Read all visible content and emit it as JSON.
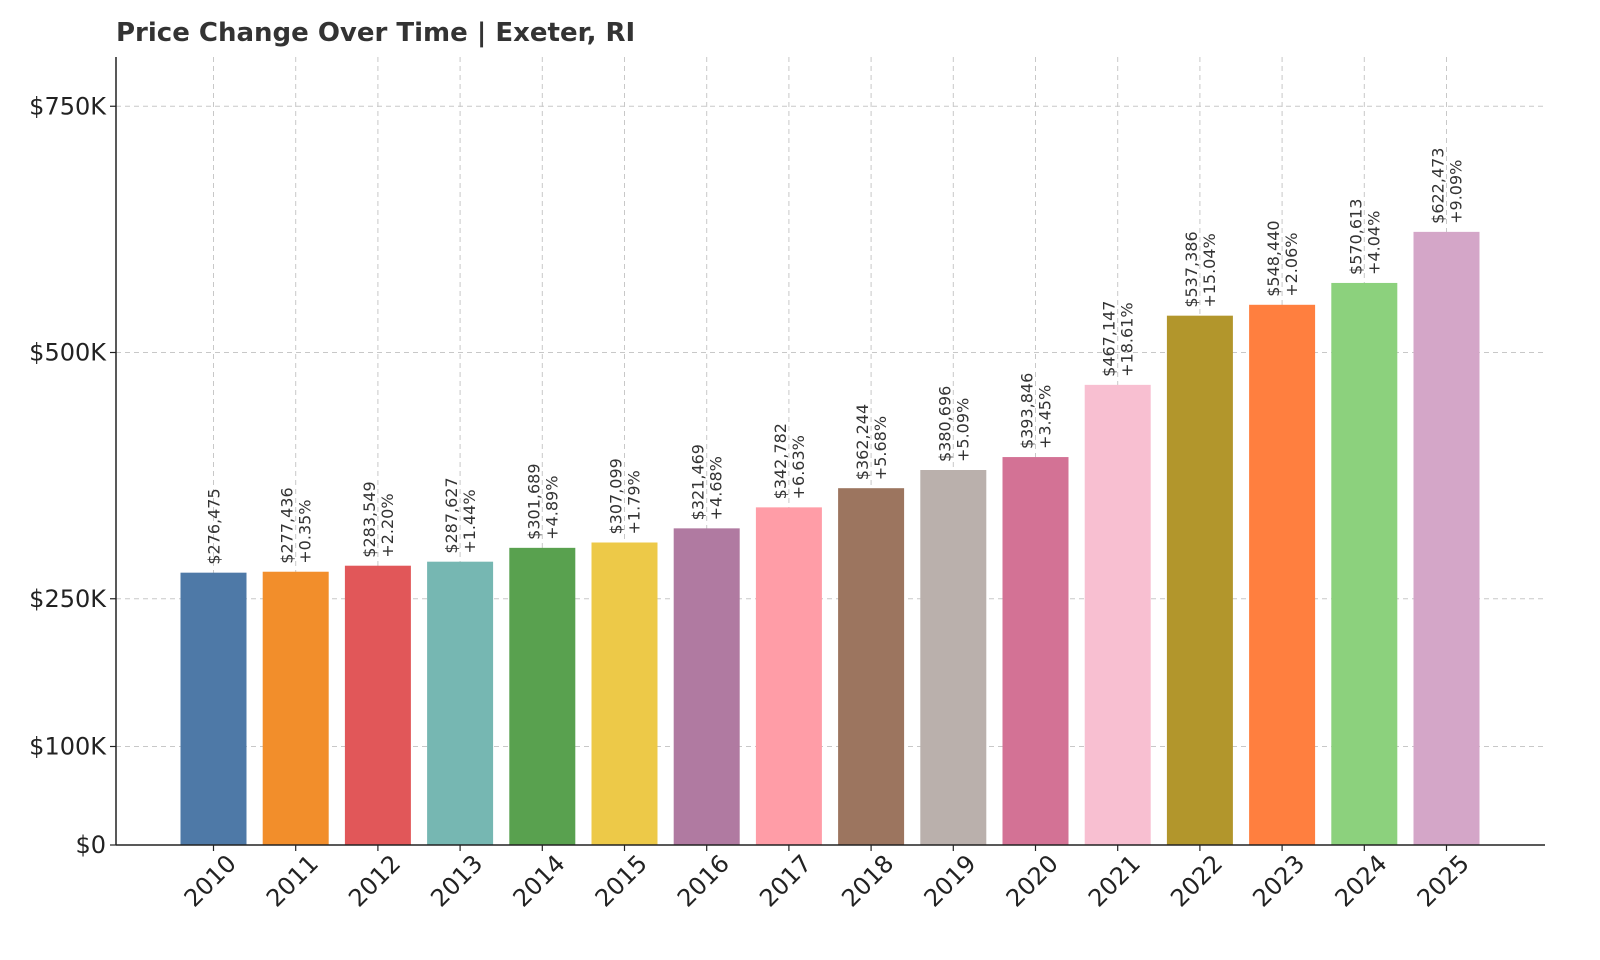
{
  "chart_data": {
    "type": "bar",
    "title": "Price Change Over Time | Exeter, RI",
    "xlabel": "",
    "ylabel": "",
    "categories": [
      "2010",
      "2011",
      "2012",
      "2013",
      "2014",
      "2015",
      "2016",
      "2017",
      "2018",
      "2019",
      "2020",
      "2021",
      "2022",
      "2023",
      "2024",
      "2025"
    ],
    "values": [
      276475,
      277436,
      283549,
      287627,
      301689,
      307099,
      321469,
      342782,
      362244,
      380696,
      393846,
      467147,
      537386,
      548440,
      570613,
      622473
    ],
    "value_labels": [
      "$276,475",
      "$277,436",
      "$283,549",
      "$287,627",
      "$301,689",
      "$307,099",
      "$321,469",
      "$342,782",
      "$362,244",
      "$380,696",
      "$393,846",
      "$467,147",
      "$537,386",
      "$548,440",
      "$570,613",
      "$622,473"
    ],
    "change_labels": [
      "",
      "+0.35%",
      "+2.20%",
      "+1.44%",
      "+4.89%",
      "+1.79%",
      "+4.68%",
      "+6.63%",
      "+5.68%",
      "+5.09%",
      "+3.45%",
      "+18.61%",
      "+15.04%",
      "+2.06%",
      "+4.04%",
      "+9.09%"
    ],
    "colors": [
      "#4e79a7",
      "#f28e2b",
      "#e15759",
      "#76b7b2",
      "#59a14f",
      "#edc948",
      "#b07aa1",
      "#ff9da7",
      "#9c755f",
      "#bab0ac",
      "#d37295",
      "#f8bfd1",
      "#b2962c",
      "#ff7f3f",
      "#8cd17d",
      "#d4a6c8"
    ],
    "ylim": [
      0,
      800000
    ],
    "yticks": [
      0,
      100000,
      250000,
      500000,
      750000
    ],
    "ytick_labels": [
      "$0",
      "$100K",
      "$250K",
      "$500K",
      "$750K"
    ],
    "grid": true,
    "legend": "none"
  }
}
